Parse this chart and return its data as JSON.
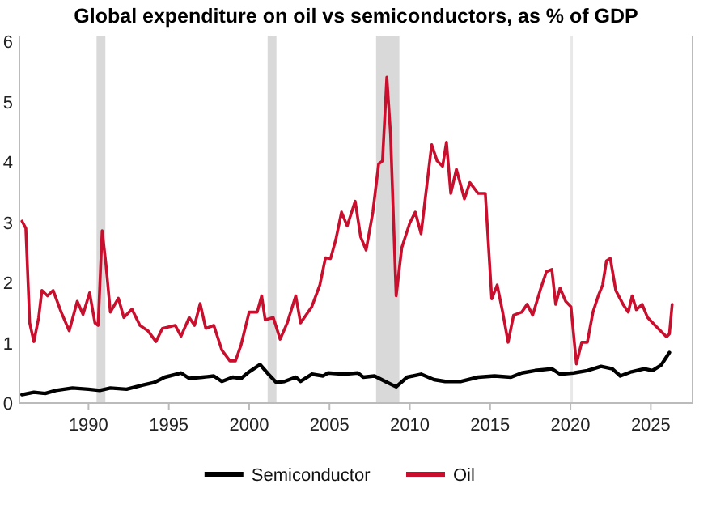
{
  "chart_data": {
    "type": "line",
    "title": "Global expenditure on oil vs semiconductors, as % of GDP",
    "xlim": [
      1985.7,
      2027.6
    ],
    "xticks": [
      1990,
      1995,
      2000,
      2005,
      2010,
      2015,
      2020,
      2025
    ],
    "ylim": [
      0,
      6.1
    ],
    "yticks": [
      0,
      1,
      2,
      3,
      4,
      5,
      6
    ],
    "grid": false,
    "legend": "bottom",
    "line_style": "solid",
    "marker": "none",
    "bands": [
      {
        "axis": "x",
        "from": 1990.5,
        "to": 1991.05,
        "color": "#d9d9d9"
      },
      {
        "axis": "x",
        "from": 2001.15,
        "to": 2001.7,
        "color": "#d9d9d9"
      },
      {
        "axis": "x",
        "from": 2007.9,
        "to": 2009.35,
        "color": "#d9d9d9"
      },
      {
        "axis": "x",
        "from": 2020.0,
        "to": 2020.15,
        "color": "#e8e8e8"
      }
    ],
    "series": [
      {
        "name": "Semiconductor",
        "color": "#000000",
        "x": [
          1985.86,
          1986.6,
          1987.3,
          1987.97,
          1989.0,
          1990.0,
          1990.7,
          1991.36,
          1992.37,
          1993.4,
          1994.07,
          1994.75,
          1995.76,
          1996.27,
          1997.1,
          1997.8,
          1998.3,
          1998.98,
          1999.5,
          2000.0,
          2000.68,
          2001.2,
          2001.7,
          2002.2,
          2002.9,
          2003.2,
          2003.9,
          2004.6,
          2004.9,
          2005.9,
          2006.77,
          2007.1,
          2007.8,
          2008.47,
          2009.15,
          2009.83,
          2010.7,
          2011.5,
          2012.2,
          2013.2,
          2014.25,
          2015.27,
          2016.3,
          2016.97,
          2017.8,
          2018.84,
          2019.35,
          2020.2,
          2021.05,
          2021.9,
          2022.6,
          2023.1,
          2023.8,
          2024.6,
          2025.1,
          2025.64,
          2026.16
        ],
        "values": [
          0.14,
          0.18,
          0.16,
          0.21,
          0.25,
          0.23,
          0.21,
          0.25,
          0.23,
          0.3,
          0.34,
          0.43,
          0.5,
          0.41,
          0.43,
          0.45,
          0.36,
          0.43,
          0.41,
          0.52,
          0.64,
          0.48,
          0.34,
          0.36,
          0.43,
          0.36,
          0.48,
          0.45,
          0.5,
          0.48,
          0.5,
          0.43,
          0.45,
          0.36,
          0.27,
          0.43,
          0.48,
          0.39,
          0.36,
          0.36,
          0.43,
          0.45,
          0.43,
          0.5,
          0.54,
          0.57,
          0.48,
          0.5,
          0.54,
          0.61,
          0.57,
          0.45,
          0.52,
          0.57,
          0.54,
          0.63,
          0.84
        ]
      },
      {
        "name": "Oil",
        "color": "#c8102e",
        "x": [
          1985.86,
          1986.1,
          1986.34,
          1986.6,
          1986.9,
          1987.1,
          1987.45,
          1987.8,
          1988.3,
          1988.8,
          1989.3,
          1989.66,
          1990.07,
          1990.4,
          1990.6,
          1990.85,
          1991.08,
          1991.36,
          1991.86,
          1992.2,
          1992.7,
          1993.2,
          1993.7,
          1994.2,
          1994.6,
          1995.4,
          1995.76,
          1996.27,
          1996.6,
          1996.95,
          1997.3,
          1997.8,
          1998.3,
          1998.8,
          1999.15,
          1999.5,
          2000.0,
          2000.5,
          2000.78,
          2001.0,
          2001.5,
          2001.93,
          2002.37,
          2002.9,
          2003.2,
          2003.9,
          2004.4,
          2004.75,
          2005.07,
          2005.4,
          2005.75,
          2006.1,
          2006.6,
          2006.94,
          2007.28,
          2007.7,
          2008.06,
          2008.3,
          2008.57,
          2008.8,
          2009.15,
          2009.5,
          2010.0,
          2010.34,
          2010.7,
          2011.0,
          2011.36,
          2011.7,
          2012.04,
          2012.28,
          2012.55,
          2012.9,
          2013.4,
          2013.74,
          2014.25,
          2014.7,
          2015.1,
          2015.44,
          2015.78,
          2016.12,
          2016.46,
          2016.97,
          2017.3,
          2017.65,
          2018.16,
          2018.5,
          2018.84,
          2019.08,
          2019.35,
          2019.7,
          2020.03,
          2020.37,
          2020.7,
          2021.05,
          2021.4,
          2021.73,
          2022.0,
          2022.24,
          2022.48,
          2022.82,
          2023.27,
          2023.6,
          2023.84,
          2024.1,
          2024.46,
          2024.8,
          2025.3,
          2025.64,
          2025.98,
          2026.16,
          2026.33
        ],
        "values": [
          3.02,
          2.9,
          1.33,
          1.02,
          1.42,
          1.87,
          1.78,
          1.87,
          1.51,
          1.2,
          1.69,
          1.47,
          1.83,
          1.33,
          1.29,
          2.86,
          2.32,
          1.51,
          1.74,
          1.42,
          1.56,
          1.29,
          1.2,
          1.02,
          1.24,
          1.29,
          1.11,
          1.42,
          1.29,
          1.65,
          1.24,
          1.29,
          0.88,
          0.7,
          0.7,
          0.97,
          1.51,
          1.51,
          1.78,
          1.38,
          1.42,
          1.06,
          1.33,
          1.78,
          1.33,
          1.6,
          1.96,
          2.41,
          2.4,
          2.72,
          3.17,
          2.94,
          3.35,
          2.76,
          2.54,
          3.17,
          3.97,
          4.02,
          5.41,
          4.47,
          1.78,
          2.58,
          2.99,
          3.17,
          2.81,
          3.48,
          4.29,
          4.02,
          3.93,
          4.33,
          3.48,
          3.88,
          3.39,
          3.66,
          3.48,
          3.48,
          1.73,
          1.96,
          1.51,
          1.01,
          1.46,
          1.51,
          1.64,
          1.46,
          1.91,
          2.18,
          2.22,
          1.64,
          1.91,
          1.69,
          1.6,
          0.65,
          1.01,
          1.01,
          1.51,
          1.78,
          1.96,
          2.36,
          2.4,
          1.87,
          1.64,
          1.51,
          1.78,
          1.55,
          1.64,
          1.42,
          1.28,
          1.19,
          1.1,
          1.15,
          1.64
        ]
      }
    ]
  }
}
